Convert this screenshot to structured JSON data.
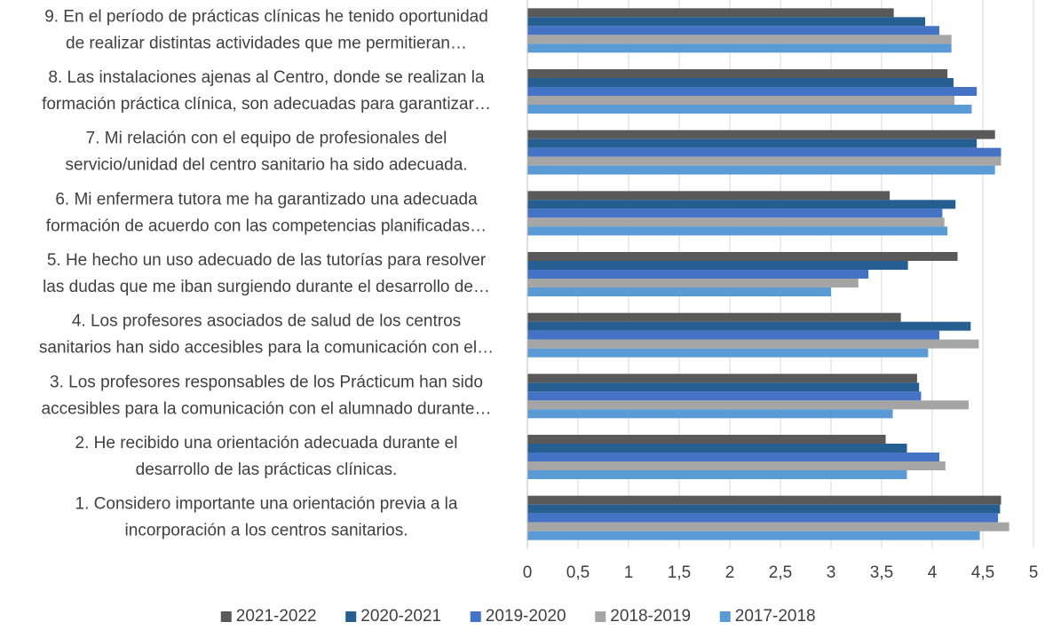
{
  "chart_data": {
    "type": "bar",
    "orientation": "horizontal",
    "categories": [
      [
        "1. Considero importante una orientación previa a la",
        "incorporación a los centros sanitarios."
      ],
      [
        "2. He recibido una orientación adecuada durante el",
        "desarrollo de las prácticas clínicas."
      ],
      [
        "3. Los profesores responsables de los Prácticum han sido",
        "accesibles para la comunicación con el alumnado durante…"
      ],
      [
        "4. Los profesores asociados de salud de los centros",
        "sanitarios han sido accesibles para la comunicación con el…"
      ],
      [
        "5. He hecho un uso adecuado de las tutorías para resolver",
        "las dudas que me iban surgiendo durante el desarrollo de…"
      ],
      [
        "6. Mi enfermera tutora me ha garantizado una adecuada",
        "formación de acuerdo con las competencias planificadas…"
      ],
      [
        "7. Mi relación con el equipo de profesionales del",
        "servicio/unidad del centro sanitario ha sido adecuada."
      ],
      [
        "8. Las instalaciones ajenas al Centro, donde se realizan la",
        "formación práctica clínica, son adecuadas para garantizar…"
      ],
      [
        "9. En el período de prácticas clínicas he tenido oportunidad",
        "de realizar distintas actividades que me permitieran…"
      ]
    ],
    "series": [
      {
        "name": "2021-2022",
        "color": "#595959",
        "values": [
          4.68,
          3.54,
          3.85,
          3.69,
          4.25,
          3.58,
          4.62,
          4.15,
          3.62
        ]
      },
      {
        "name": "2020-2021",
        "color": "#255e91",
        "values": [
          4.67,
          3.75,
          3.87,
          4.38,
          3.76,
          4.23,
          4.44,
          4.21,
          3.93
        ]
      },
      {
        "name": "2019-2020",
        "color": "#4472c4",
        "values": [
          4.65,
          4.07,
          3.89,
          4.07,
          3.37,
          4.1,
          4.68,
          4.44,
          4.07
        ]
      },
      {
        "name": "2018-2019",
        "color": "#a5a5a5",
        "values": [
          4.76,
          4.13,
          4.36,
          4.46,
          3.27,
          4.12,
          4.68,
          4.22,
          4.19
        ]
      },
      {
        "name": "2017-2018",
        "color": "#5b9bd5",
        "values": [
          4.47,
          3.75,
          3.61,
          3.96,
          3.0,
          4.15,
          4.62,
          4.39,
          4.19
        ]
      }
    ],
    "xlim": [
      0,
      5
    ],
    "xticks": [
      0,
      {
        "value": 0.5,
        "label": "0,5"
      },
      1,
      {
        "value": 1.5,
        "label": "1,5"
      },
      2,
      {
        "value": 2.5,
        "label": "2,5"
      },
      3,
      {
        "value": 3.5,
        "label": "3,5"
      },
      4,
      {
        "value": 4.5,
        "label": "4,5"
      },
      5
    ],
    "grid": true,
    "legend": "bottom"
  }
}
